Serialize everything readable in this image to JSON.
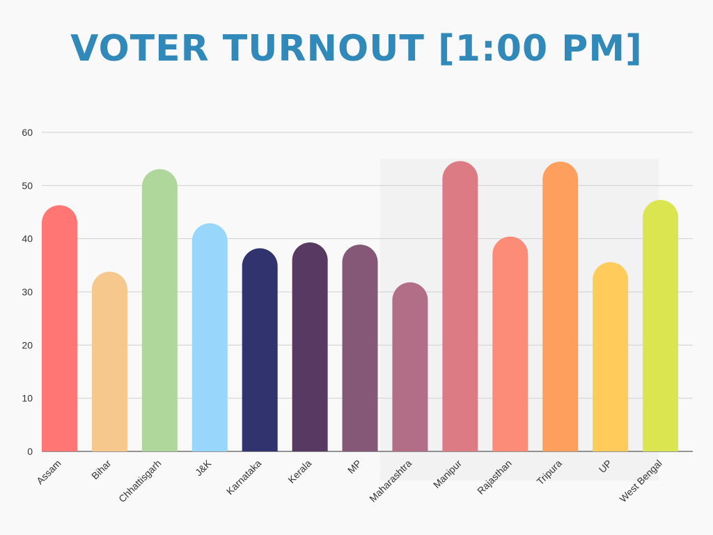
{
  "chart_data": {
    "type": "bar",
    "title": "VOTER TURNOUT [1:00 PM]",
    "xlabel": "",
    "ylabel": "",
    "ylim": [
      0,
      60
    ],
    "yticks": [
      0,
      10,
      20,
      30,
      40,
      50,
      60
    ],
    "grid": true,
    "categories": [
      "Assam",
      "Bihar",
      "Chhattisgarh",
      "J&K",
      "Karnataka",
      "Kerala",
      "MP",
      "Maharashtra",
      "Manipur",
      "Rajasthan",
      "Tripura",
      "UP",
      "West Bengal"
    ],
    "values": [
      46.3,
      33.8,
      53.1,
      42.9,
      38.2,
      39.3,
      38.9,
      31.8,
      54.6,
      40.4,
      54.5,
      35.6,
      47.3
    ],
    "colors": [
      "#ff7675",
      "#f7c88d",
      "#b0d79b",
      "#98d6fc",
      "#31336e",
      "#573962",
      "#845876",
      "#b36e87",
      "#dd7b85",
      "#fc8b78",
      "#fe9f5d",
      "#ffcb5b",
      "#dbe54f"
    ]
  }
}
